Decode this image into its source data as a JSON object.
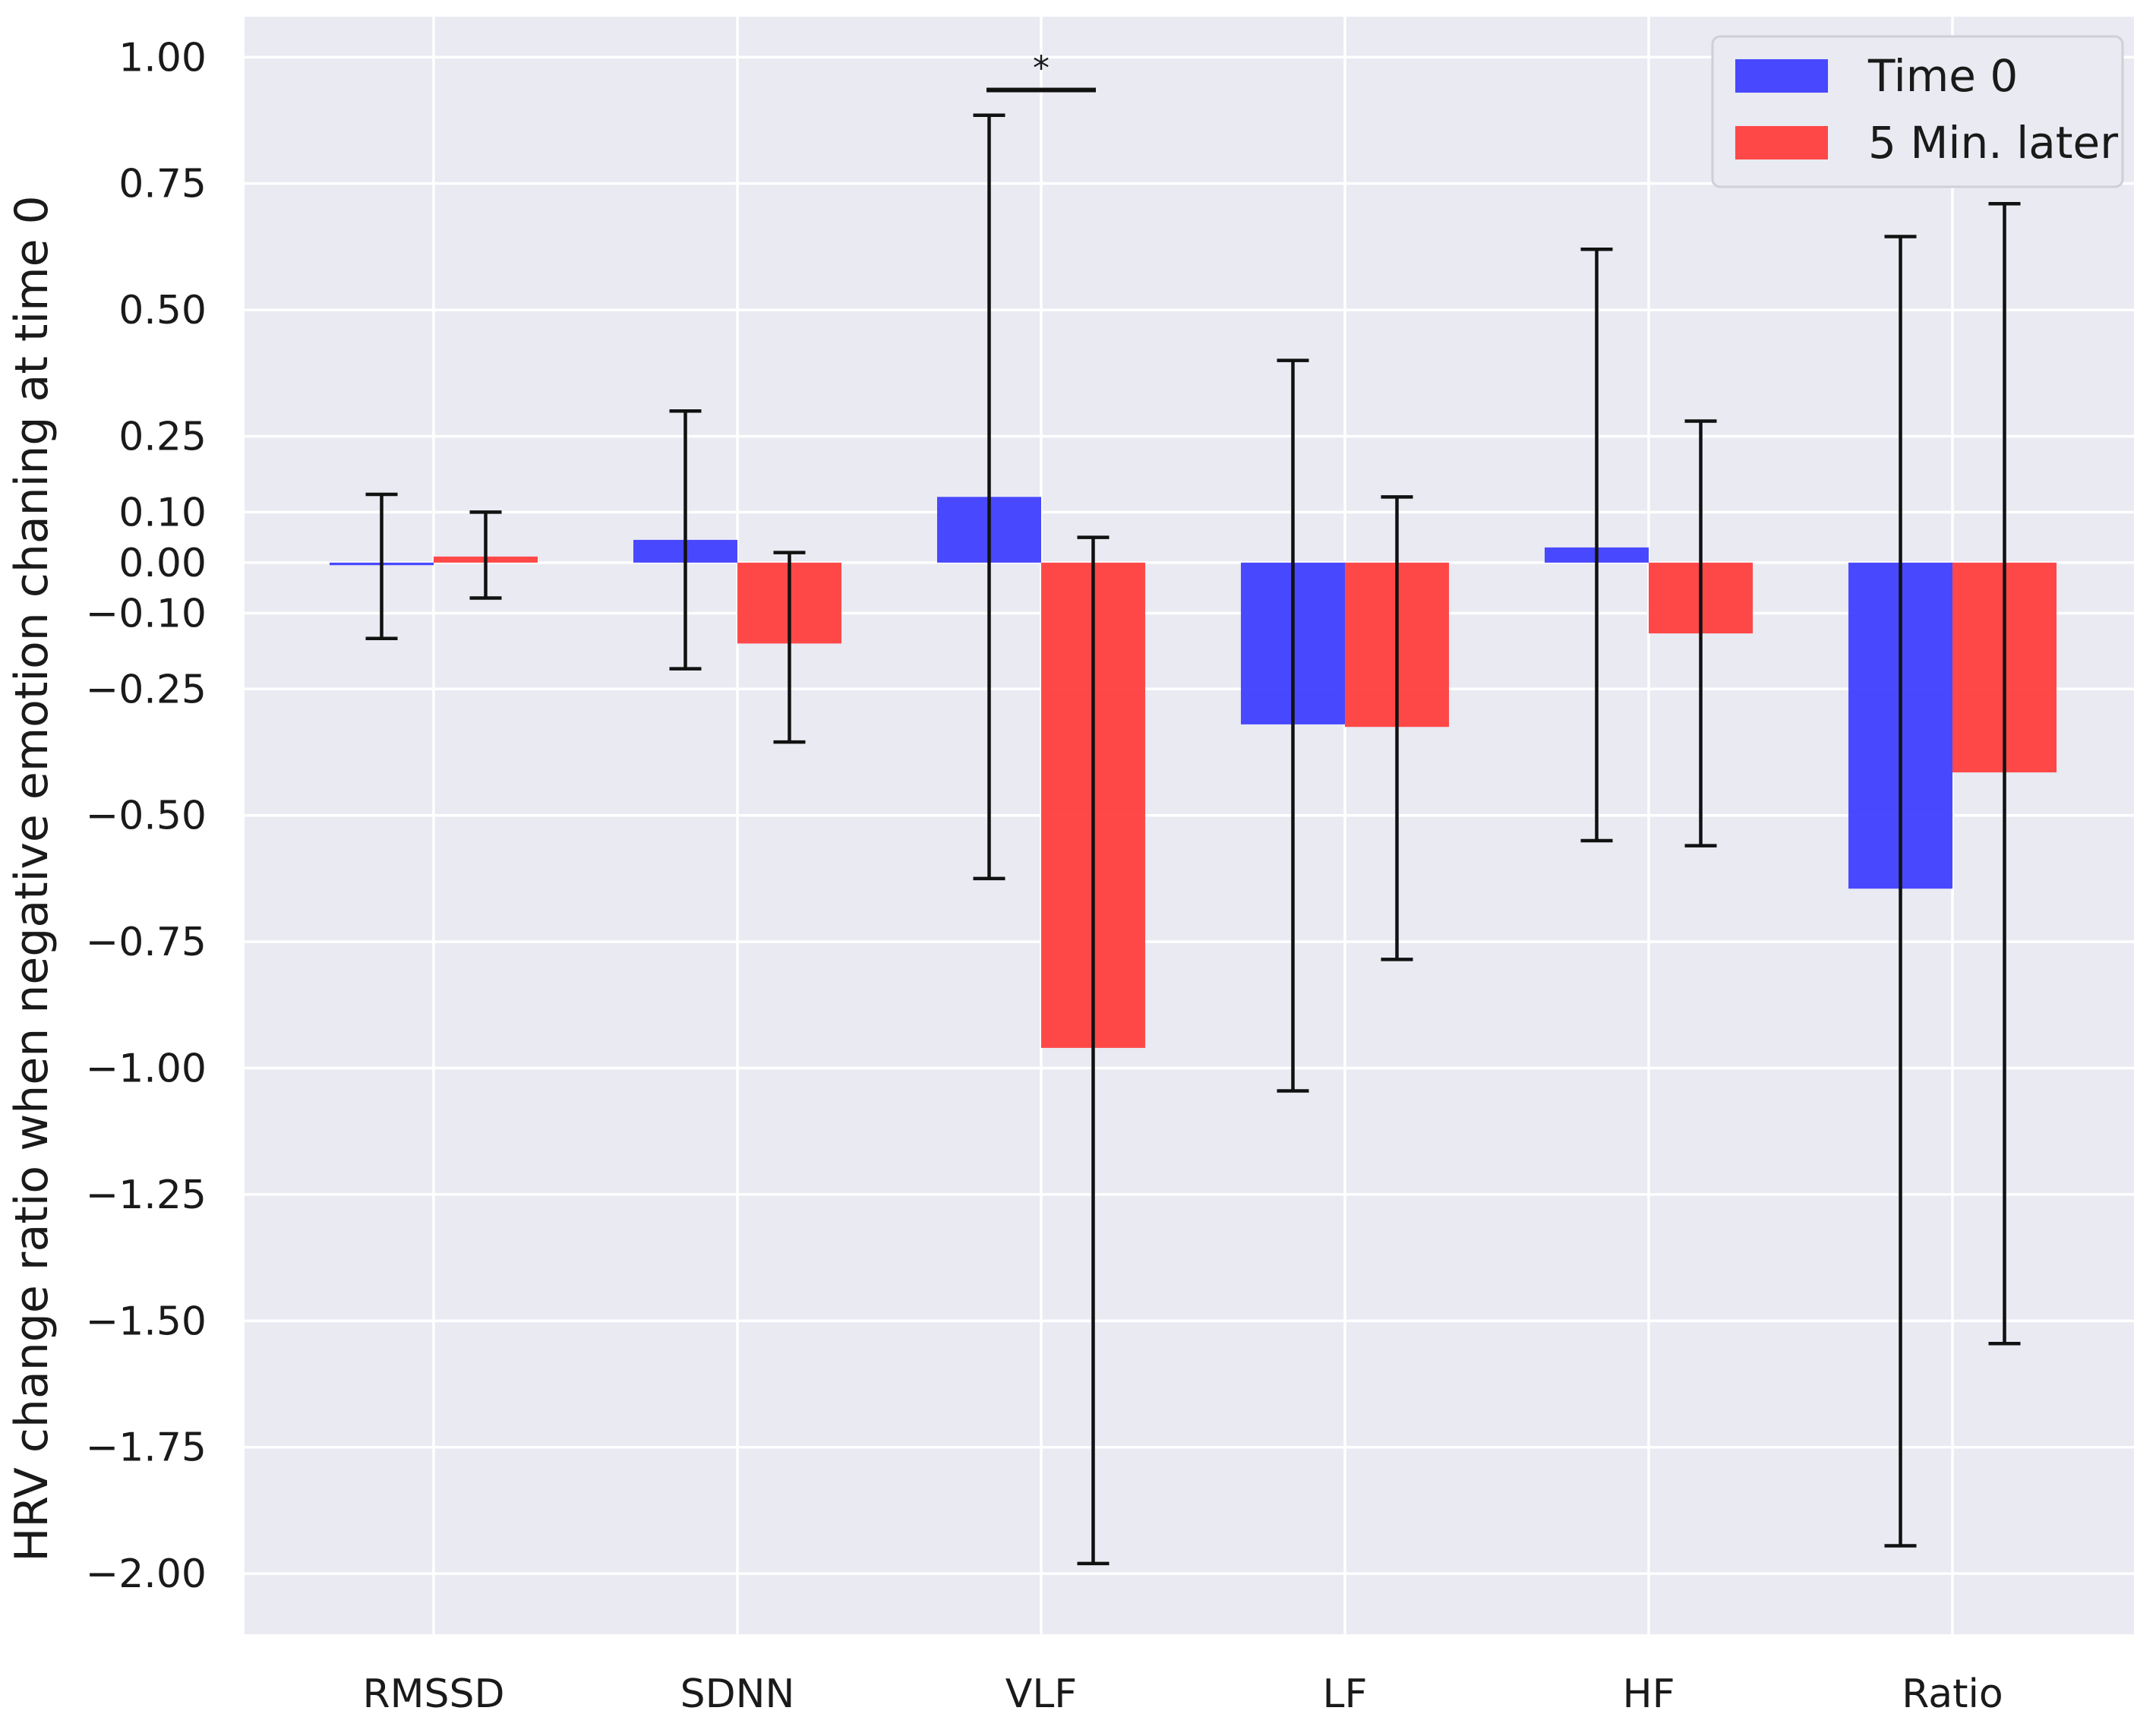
{
  "chart_data": {
    "type": "bar",
    "title": "",
    "xlabel": "",
    "ylabel": "HRV change ratio when negative emotion chaning at time 0",
    "categories": [
      "RMSSD",
      "SDNN",
      "VLF",
      "LF",
      "HF",
      "Ratio"
    ],
    "series": [
      {
        "name": "Time 0",
        "color": "#3a3aff",
        "values": [
          -0.005,
          0.045,
          0.13,
          -0.32,
          0.03,
          -0.645
        ],
        "err_low": [
          -0.15,
          -0.21,
          -0.625,
          -1.045,
          -0.55,
          -1.945
        ],
        "err_high": [
          0.135,
          0.3,
          0.885,
          0.4,
          0.62,
          0.645
        ]
      },
      {
        "name": "5 Min. later",
        "color": "#ff3a3a",
        "values": [
          0.012,
          -0.16,
          -0.96,
          -0.325,
          -0.14,
          -0.415
        ],
        "err_low": [
          -0.07,
          -0.355,
          -1.98,
          -0.785,
          -0.56,
          -1.545
        ],
        "err_high": [
          0.1,
          0.02,
          0.05,
          0.13,
          0.28,
          0.71
        ]
      }
    ],
    "ylim": [
      -2.12,
      1.08
    ],
    "yticks": [
      1.0,
      0.75,
      0.5,
      0.25,
      0.1,
      0.0,
      -0.1,
      -0.25,
      -0.5,
      -0.75,
      -1.0,
      -1.25,
      -1.5,
      -1.75,
      -2.0
    ],
    "ytick_labels": [
      "1.00",
      "0.75",
      "0.50",
      "0.25",
      "0.10",
      "0.00",
      "−0.10",
      "−0.25",
      "−0.50",
      "−0.75",
      "−1.00",
      "−1.25",
      "−1.50",
      "−1.75",
      "−2.00"
    ],
    "grid": true,
    "legend_position": "top-right",
    "annotations": [
      {
        "text": "*",
        "category": "VLF",
        "y": 0.935
      }
    ]
  }
}
